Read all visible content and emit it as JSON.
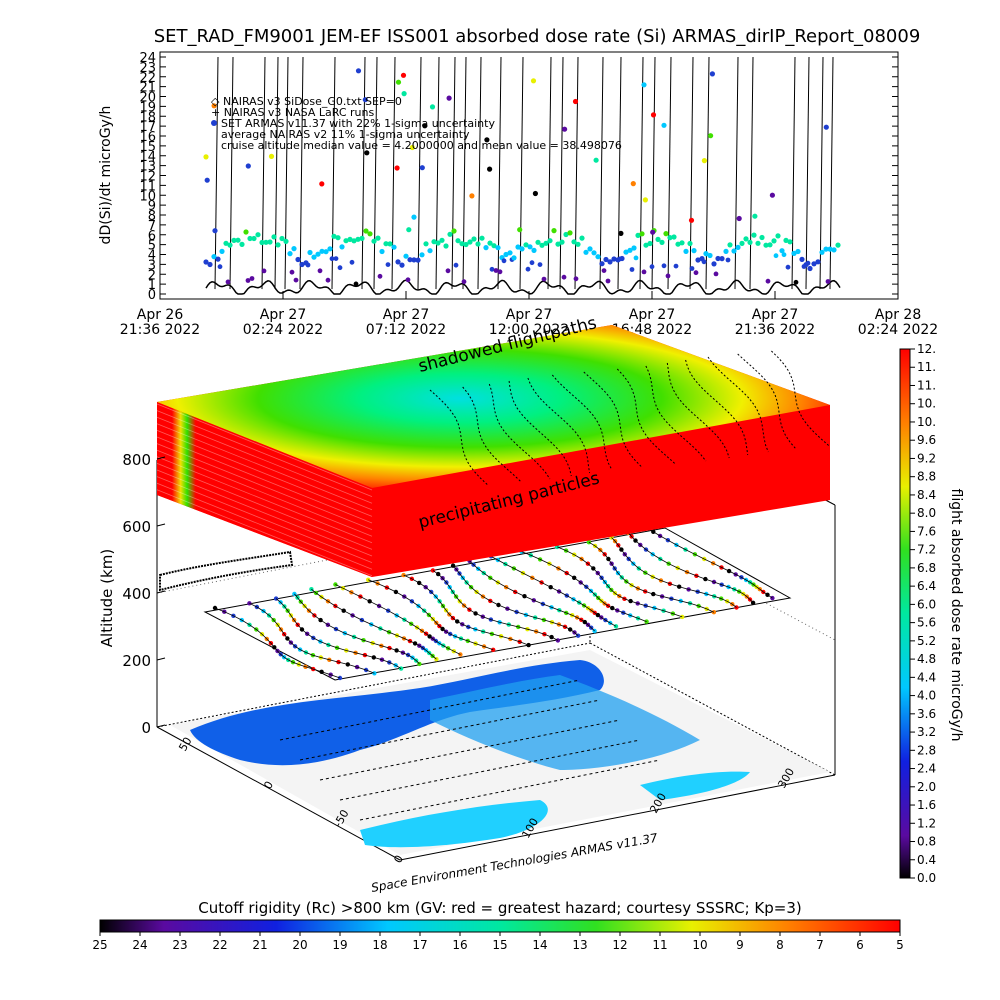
{
  "page": {
    "title": "SET_RAD_FM9001  JEM-EF ISS001 absorbed dose rate (Si) ARMAS_dirIP_Report_08009",
    "credit": "Space Environment Technologies ARMAS v11.37"
  },
  "colors": {
    "background": "#ffffff",
    "axis": "#000000",
    "nairas_line": "#000000"
  },
  "chart_data": [
    {
      "type": "scatter",
      "ylabel": "dD(Si)/dt microGy/h",
      "ylim": [
        0,
        24
      ],
      "yticks": [
        "0",
        "1",
        "2",
        "3",
        "4",
        "5",
        "6",
        "7",
        "8",
        "9",
        "10",
        "11",
        "12",
        "13",
        "14",
        "15",
        "16",
        "17",
        "18",
        "19",
        "20",
        "21",
        "22",
        "23",
        "24"
      ],
      "xticks": [
        {
          "line1": "Apr 26",
          "line2": "21:36 2022"
        },
        {
          "line1": "Apr 27",
          "line2": "02:24 2022"
        },
        {
          "line1": "Apr 27",
          "line2": "07:12 2022"
        },
        {
          "line1": "Apr 27",
          "line2": "12:00 2022"
        },
        {
          "line1": "Apr 27",
          "line2": "16:48 2022"
        },
        {
          "line1": "Apr 27",
          "line2": "21:36 2022"
        },
        {
          "line1": "Apr 28",
          "line2": "02:24 2022"
        }
      ],
      "legend_position": "top-left",
      "legend": [
        "NAIRAS v3 SiDose_G0.txt SEP=0",
        "NAIRAS v3 NASA LaRC runs",
        "SET ARMAS v11.37 with 22% 1-sigma uncertainty",
        "average NAIRAS v2 11% 1-sigma uncertainty",
        "cruise altitude median value = 4.2000000 and mean value = 38.498076"
      ],
      "summary": {
        "median": 4.2,
        "mean": 38.498076
      }
    },
    {
      "type": "scatter3d",
      "zlabel": "Altitude (km)",
      "zticks": [
        "0",
        "200",
        "400",
        "600",
        "800"
      ],
      "xticks": [
        "0",
        "100",
        "200",
        "300"
      ],
      "yticks": [
        "-50",
        "0",
        "50"
      ],
      "annotations": [
        "shadowed flightpaths",
        "precipitating particles"
      ],
      "colorbar": {
        "label": "flight absorbed dose rate microGy/h",
        "ticks": [
          "0.0",
          "0.4",
          "0.8",
          "1.2",
          "1.6",
          "2.0",
          "2.4",
          "2.8",
          "3.2",
          "3.6",
          "4.0",
          "4.4",
          "4.8",
          "5.2",
          "5.6",
          "6.0",
          "6.4",
          "6.8",
          "7.2",
          "7.6",
          "8.0",
          "8.4",
          "8.8",
          "9.2",
          "9.6",
          "10.",
          "10.",
          "11.",
          "11.",
          "12."
        ]
      }
    },
    {
      "type": "colorbar",
      "label": "Cutoff rigidity (Rc) >800 km (GV: red = greatest hazard; courtesy SSSRC; Kp=3)",
      "ticks": [
        "25",
        "24",
        "23",
        "22",
        "21",
        "20",
        "19",
        "18",
        "17",
        "16",
        "15",
        "14",
        "13",
        "12",
        "11",
        "10",
        "9",
        "8",
        "7",
        "6",
        "5"
      ]
    }
  ]
}
